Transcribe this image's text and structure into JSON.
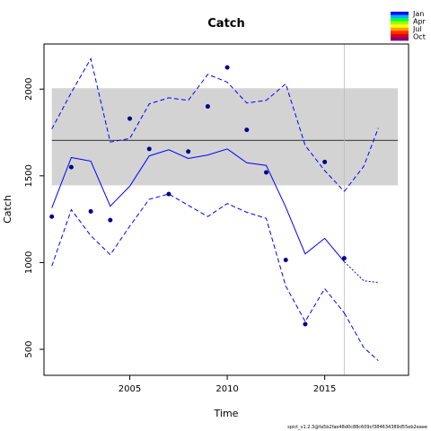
{
  "chart_data": {
    "type": "line",
    "title": "Catch",
    "xlabel": "Time",
    "ylabel": "Catch",
    "xlim": [
      2000.6,
      2019.3
    ],
    "ylim": [
      350,
      2260
    ],
    "xticks": [
      2005,
      2010,
      2015
    ],
    "yticks": [
      500,
      1000,
      1500,
      2000
    ],
    "grid": false,
    "reference_band": {
      "y_low": 1445,
      "y_high": 2005,
      "x_from": 2001,
      "x_to": 2018.75,
      "color": "#d3d3d3"
    },
    "reference_line": {
      "y": 1705,
      "x_from": 2001,
      "x_to": 2018.75
    },
    "vertical_line": {
      "x": 2016
    },
    "observed_points": {
      "x": [
        2001,
        2002,
        2003,
        2004,
        2005,
        2006,
        2007,
        2008,
        2009,
        2010,
        2011,
        2012,
        2013,
        2014,
        2015,
        2016
      ],
      "y": [
        1265,
        1550,
        1295,
        1245,
        1830,
        1655,
        1395,
        1640,
        1900,
        2125,
        1765,
        1520,
        1015,
        645,
        1580,
        1025
      ],
      "color": "#00008b"
    },
    "series": [
      {
        "style": "solid",
        "color": "#0000ff",
        "x": [
          2001,
          2002,
          2003,
          2004,
          2005,
          2006,
          2007,
          2008,
          2009,
          2010,
          2011,
          2012,
          2013,
          2014,
          2015,
          2016
        ],
        "y": [
          1315,
          1605,
          1585,
          1325,
          1440,
          1615,
          1650,
          1600,
          1620,
          1655,
          1575,
          1560,
          1320,
          1050,
          1140,
          1005
        ]
      },
      {
        "style": "dashed",
        "color": "#0000ff",
        "x": [
          2001,
          2002,
          2003,
          2004,
          2005,
          2006,
          2007,
          2008,
          2009,
          2010,
          2011,
          2012,
          2013,
          2014,
          2015,
          2016
        ],
        "y": [
          1770,
          1980,
          2175,
          1695,
          1715,
          1915,
          1950,
          1935,
          2085,
          2040,
          1920,
          1935,
          2030,
          1675,
          1530,
          1410
        ]
      },
      {
        "style": "dashed",
        "color": "#0000ff",
        "x": [
          2001,
          2002,
          2003,
          2004,
          2005,
          2006,
          2007,
          2008,
          2009,
          2010,
          2011,
          2012,
          2013,
          2014,
          2015,
          2016
        ],
        "y": [
          980,
          1305,
          1155,
          1045,
          1210,
          1365,
          1395,
          1330,
          1265,
          1340,
          1290,
          1255,
          865,
          660,
          850,
          710
        ]
      },
      {
        "style": "dashed",
        "color": "#0000ff",
        "x": [
          2016,
          2017,
          2017.75
        ],
        "y": [
          1410,
          1555,
          1775
        ]
      },
      {
        "style": "dotted",
        "color": "#0000ff",
        "x": [
          2016,
          2017,
          2017.75
        ],
        "y": [
          1005,
          895,
          885
        ]
      },
      {
        "style": "dashed",
        "color": "#0000ff",
        "x": [
          2016,
          2017,
          2017.75
        ],
        "y": [
          710,
          510,
          435
        ]
      }
    ],
    "legend": {
      "placement": "top-right",
      "labels": [
        "Jan",
        "Apr",
        "Jul",
        "Oct"
      ],
      "colors": [
        "#0000ff",
        "#00b0ff",
        "#00ff40",
        "#a0ff00",
        "#ffff00",
        "#ffa000",
        "#ff3000",
        "#e00000",
        "#800080"
      ]
    },
    "footnote": "spict_v1.2.3@fa5b2fae48d0c88c609cf384634389d55eb2eaee"
  }
}
